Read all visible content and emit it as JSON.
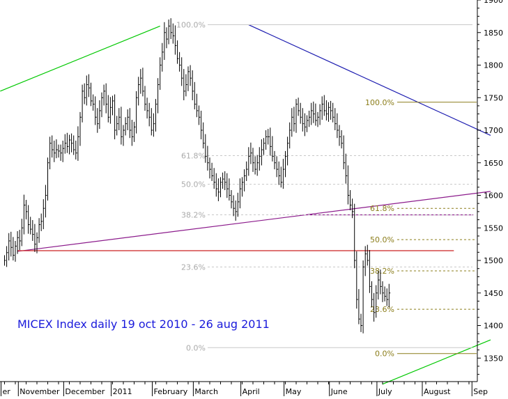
{
  "chart_data": {
    "type": "ohlc",
    "title": "MICEX Index daily 19 oct 2010 - 26 aug 2011",
    "xlabel": "",
    "ylabel": "",
    "ylim": [
      1300,
      1880
    ],
    "y_ticks": [
      1350,
      1400,
      1450,
      1500,
      1550,
      1600,
      1650,
      1700,
      1750,
      1800,
      1850,
      1900
    ],
    "y_tick_labels": [
      "1350",
      "1400",
      "1450",
      "1500",
      "1550",
      "1600",
      "1650",
      "1700",
      "1750",
      "1800",
      "1850",
      "1900"
    ],
    "x_month_labels": [
      "October",
      "November",
      "December",
      "2011",
      "February",
      "March",
      "April",
      "May",
      "June",
      "July",
      "August",
      "Sep"
    ],
    "x_month_labels_shown": [
      "er",
      "November",
      "December",
      "2011",
      "February",
      "March",
      "April",
      "May",
      "June",
      "July",
      "August",
      "Sep"
    ],
    "x_month_day_index": [
      0,
      8,
      29,
      51,
      70,
      89,
      111,
      131,
      152,
      174,
      195,
      218
    ],
    "x_range_days": [
      -2,
      225
    ],
    "grid": false,
    "series": [
      {
        "name": "MICEX",
        "close": [
          1500,
          1512,
          1530,
          1520,
          1508,
          1522,
          1535,
          1530,
          1550,
          1585,
          1575,
          1555,
          1548,
          1540,
          1525,
          1535,
          1555,
          1560,
          1580,
          1600,
          1650,
          1680,
          1670,
          1665,
          1670,
          1668,
          1665,
          1672,
          1680,
          1675,
          1685,
          1680,
          1670,
          1665,
          1690,
          1720,
          1760,
          1750,
          1770,
          1765,
          1745,
          1740,
          1720,
          1710,
          1730,
          1750,
          1760,
          1740,
          1720,
          1735,
          1745,
          1700,
          1710,
          1720,
          1690,
          1700,
          1710,
          1720,
          1700,
          1690,
          1705,
          1750,
          1770,
          1780,
          1760,
          1740,
          1730,
          1720,
          1700,
          1710,
          1740,
          1770,
          1800,
          1820,
          1850,
          1840,
          1860,
          1850,
          1845,
          1830,
          1810,
          1800,
          1780,
          1760,
          1770,
          1790,
          1780,
          1760,
          1740,
          1730,
          1720,
          1700,
          1680,
          1660,
          1650,
          1640,
          1630,
          1620,
          1610,
          1605,
          1620,
          1625,
          1620,
          1610,
          1600,
          1590,
          1580,
          1575,
          1590,
          1610,
          1620,
          1630,
          1640,
          1660,
          1665,
          1650,
          1640,
          1650,
          1660,
          1670,
          1680,
          1690,
          1690,
          1675,
          1660,
          1650,
          1640,
          1630,
          1620,
          1640,
          1660,
          1680,
          1700,
          1720,
          1710,
          1740,
          1730,
          1720,
          1710,
          1705,
          1715,
          1720,
          1730,
          1725,
          1715,
          1720,
          1730,
          1740,
          1730,
          1725,
          1735,
          1730,
          1720,
          1710,
          1700,
          1690,
          1680,
          1650,
          1630,
          1600,
          1585,
          1575,
          1500,
          1440,
          1410,
          1400,
          1490,
          1510,
          1500,
          1460,
          1440,
          1420,
          1450,
          1470,
          1460,
          1450,
          1445,
          1440,
          1450
        ]
      }
    ],
    "fibonacci_left": {
      "levels": [
        "100.0%",
        "61.8%",
        "50.0%",
        "38.2%",
        "23.6%",
        "0.0%"
      ],
      "values": [
        1862,
        1661,
        1617,
        1570,
        1490,
        1366
      ]
    },
    "fibonacci_right": {
      "levels": [
        "100.0%",
        "61.8%",
        "50.0%",
        "38.2%",
        "23.6%",
        "0.0%"
      ],
      "values": [
        1743,
        1580,
        1532,
        1484,
        1425,
        1357
      ]
    },
    "trend_lines": [
      {
        "color": "#00c800",
        "from": [
          -2,
          1760
        ],
        "to": [
          72,
          1860
        ]
      },
      {
        "color": "#00c800",
        "from": [
          175,
          1310
        ],
        "to": [
          225,
          1378
        ]
      },
      {
        "color": "#1c1cb0",
        "from": [
          113,
          1862
        ],
        "to": [
          225,
          1692
        ]
      },
      {
        "color": "#8b1a8b",
        "from": [
          6,
          1514
        ],
        "to": [
          225,
          1606
        ]
      },
      {
        "color": "#8b1a8b",
        "from": [
          139,
          1570
        ],
        "to": [
          217,
          1570
        ]
      },
      {
        "color": "#cc2222",
        "from": [
          6,
          1515
        ],
        "to": [
          208,
          1515
        ]
      }
    ],
    "colors": {
      "bars": "#000000",
      "fib_left": "#aaaaaa",
      "fib_right": "#8b7d1a",
      "title": "#1a1adb",
      "axis": "#000000"
    }
  }
}
